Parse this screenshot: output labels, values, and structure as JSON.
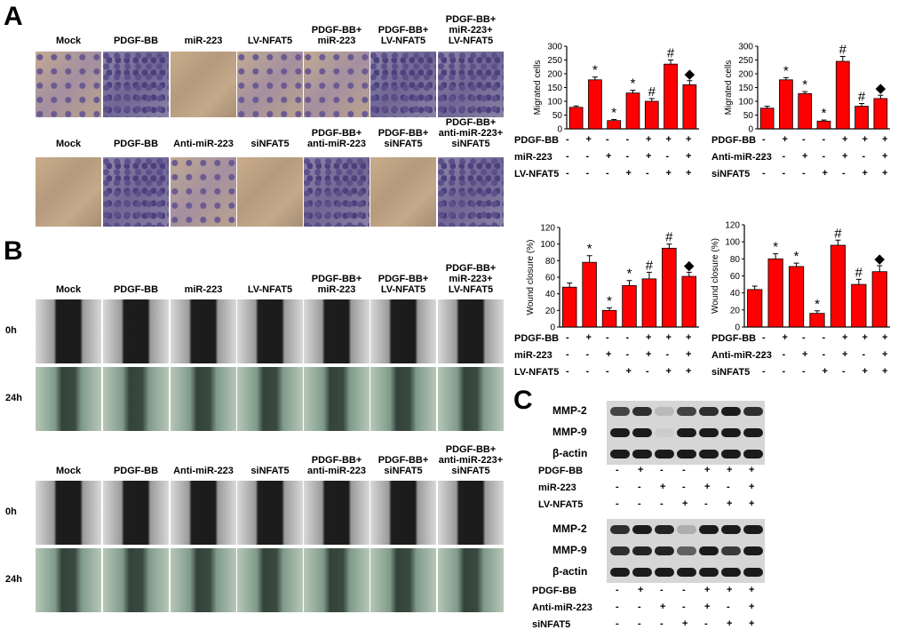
{
  "panels": {
    "a": "A",
    "b": "B",
    "c": "C"
  },
  "a_top_headers": [
    "Mock",
    "PDGF-BB",
    "miR-223",
    "LV-NFAT5",
    "PDGF-BB+\nmiR-223",
    "PDGF-BB+\nLV-NFAT5",
    "PDGF-BB+\nmiR-223+\nLV-NFAT5"
  ],
  "a_bottom_headers": [
    "Mock",
    "PDGF-BB",
    "Anti-miR-223",
    "siNFAT5",
    "PDGF-BB+\nanti-miR-223",
    "PDGF-BB+\nsiNFAT5",
    "PDGF-BB+\nanti-miR-223+\nsiNFAT5"
  ],
  "b_top_headers": [
    "Mock",
    "PDGF-BB",
    "miR-223",
    "LV-NFAT5",
    "PDGF-BB+\nmiR-223",
    "PDGF-BB+\nLV-NFAT5",
    "PDGF-BB+\nmiR-223+\nLV-NFAT5"
  ],
  "b_bottom_headers": [
    "Mock",
    "PDGF-BB",
    "Anti-miR-223",
    "siNFAT5",
    "PDGF-BB+\nanti-miR-223",
    "PDGF-BB+\nsiNFAT5",
    "PDGF-BB+\nanti-miR-223+\nsiNFAT5"
  ],
  "time_labels": {
    "t0": "0h",
    "t24": "24h"
  },
  "treatments_mir": {
    "labels": [
      "PDGF-BB",
      "miR-223",
      "LV-NFAT5"
    ],
    "signs": [
      [
        "-",
        "+",
        "-",
        "-",
        "+",
        "+",
        "+"
      ],
      [
        "-",
        "-",
        "+",
        "-",
        "+",
        "-",
        "+"
      ],
      [
        "-",
        "-",
        "-",
        "+",
        "-",
        "+",
        "+"
      ]
    ]
  },
  "treatments_anti": {
    "labels": [
      "PDGF-BB",
      "Anti-miR-223",
      "siNFAT5"
    ],
    "signs": [
      [
        "-",
        "+",
        "-",
        "-",
        "+",
        "+",
        "+"
      ],
      [
        "-",
        "-",
        "+",
        "-",
        "+",
        "-",
        "+"
      ],
      [
        "-",
        "-",
        "-",
        "+",
        "-",
        "+",
        "+"
      ]
    ]
  },
  "blot_labels": {
    "mmp2": "MMP-2",
    "mmp9": "MMP-9",
    "actin": "β-actin"
  },
  "chart_data": [
    {
      "type": "bar",
      "ylabel": "Migrated cells",
      "ylim": [
        0,
        300
      ],
      "yticks": [
        0,
        50,
        100,
        150,
        200,
        250,
        300
      ],
      "values": [
        78,
        178,
        30,
        130,
        100,
        235,
        160
      ],
      "errors": [
        5,
        10,
        4,
        10,
        10,
        15,
        15
      ],
      "markers": [
        "",
        "*",
        "*",
        "*",
        "#",
        "#",
        "◆"
      ],
      "color": "#ff0000"
    },
    {
      "type": "bar",
      "ylabel": "Migrated cells",
      "ylim": [
        0,
        300
      ],
      "yticks": [
        0,
        50,
        100,
        150,
        200,
        250,
        300
      ],
      "values": [
        75,
        178,
        128,
        28,
        245,
        82,
        110
      ],
      "errors": [
        7,
        8,
        7,
        4,
        18,
        10,
        12
      ],
      "markers": [
        "",
        "*",
        "*",
        "*",
        "#",
        "#",
        "◆"
      ],
      "color": "#ff0000"
    },
    {
      "type": "bar",
      "ylabel": "Wound closure (%)",
      "ylim": [
        0,
        120
      ],
      "yticks": [
        0,
        20,
        40,
        60,
        80,
        100,
        120
      ],
      "values": [
        48,
        78,
        20,
        50,
        58,
        95,
        61
      ],
      "errors": [
        5,
        8,
        3,
        6,
        8,
        5,
        5
      ],
      "markers": [
        "",
        "*",
        "*",
        "*",
        "#",
        "#",
        "◆"
      ],
      "color": "#ff0000"
    },
    {
      "type": "bar",
      "ylabel": "Wound closure (%)",
      "ylim": [
        0,
        120
      ],
      "yticks": [
        0,
        20,
        40,
        60,
        80,
        100,
        120
      ],
      "values": [
        44,
        80,
        71,
        16,
        96,
        50,
        65
      ],
      "errors": [
        4,
        6,
        4,
        3,
        6,
        6,
        7
      ],
      "markers": [
        "",
        "*",
        "*",
        "*",
        "#",
        "#",
        "◆"
      ],
      "color": "#ff0000"
    }
  ]
}
